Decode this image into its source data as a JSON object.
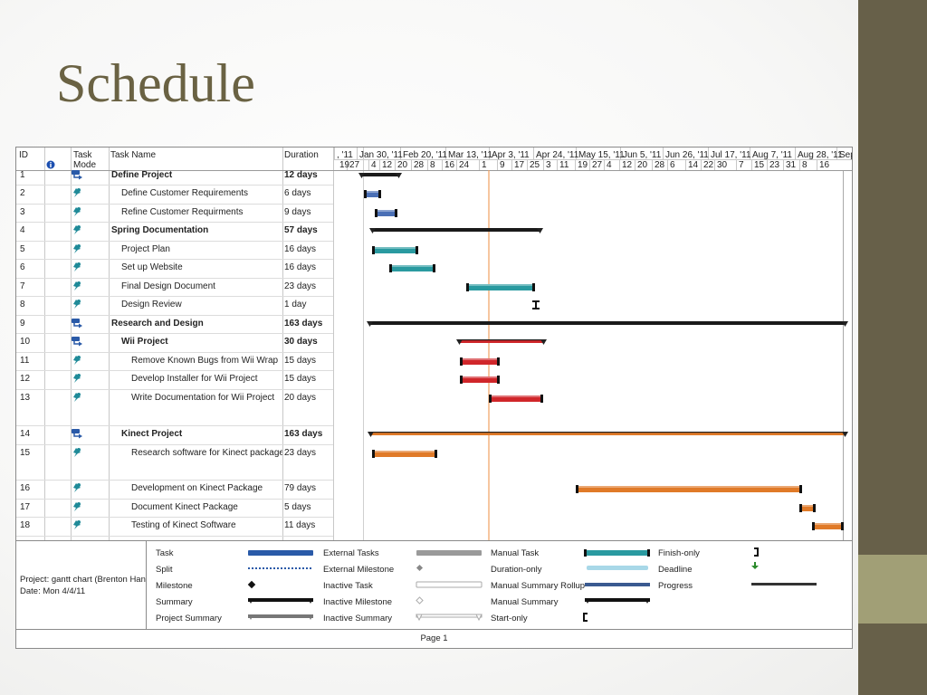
{
  "slide": {
    "title": "Schedule"
  },
  "header": {
    "id": "ID",
    "info_icon": "info-icon",
    "task_mode_1": "Task",
    "task_mode_2": "Mode",
    "task_name": "Task Name",
    "duration": "Duration"
  },
  "timeline": {
    "major": [
      ", '11",
      "Jan 30, '11",
      "Feb 20, '11",
      "Mar 13, '11",
      "Apr 3, '11",
      "Apr 24, '11",
      "May 15, '11",
      "Jun 5, '11",
      "Jun 26, '11",
      "Jul 17, '11",
      "Aug 7, '11",
      "Aug 28, '11",
      "Sep"
    ],
    "minor": [
      "19",
      "27",
      "4",
      "12",
      "20",
      "28",
      "8",
      "16",
      "24",
      "1",
      "9",
      "17",
      "25",
      "3",
      "11",
      "19",
      "27",
      "4",
      "12",
      "20",
      "28",
      "6",
      "14",
      "22",
      "30",
      "7",
      "15",
      "23",
      "31",
      "8",
      "16"
    ],
    "status_date": "Apr 3, '11"
  },
  "tasks": [
    {
      "id": "1",
      "mode": "auto",
      "name": "Define Project",
      "duration": "12 days",
      "summary": true,
      "indent": 0
    },
    {
      "id": "2",
      "mode": "manual",
      "name": "Define Customer Requirements",
      "duration": "6 days",
      "summary": false,
      "indent": 1
    },
    {
      "id": "3",
      "mode": "manual",
      "name": "Refine Customer Requirments",
      "duration": "9 days",
      "summary": false,
      "indent": 1
    },
    {
      "id": "4",
      "mode": "manual",
      "name": "Spring Documentation",
      "duration": "57 days",
      "summary": true,
      "indent": 0
    },
    {
      "id": "5",
      "mode": "manual",
      "name": "Project Plan",
      "duration": "16 days",
      "summary": false,
      "indent": 1
    },
    {
      "id": "6",
      "mode": "manual",
      "name": "Set up Website",
      "duration": "16 days",
      "summary": false,
      "indent": 1
    },
    {
      "id": "7",
      "mode": "manual",
      "name": "Final Design Document",
      "duration": "23 days",
      "summary": false,
      "indent": 1
    },
    {
      "id": "8",
      "mode": "manual",
      "name": "Design Review",
      "duration": "1 day",
      "summary": false,
      "indent": 1
    },
    {
      "id": "9",
      "mode": "auto",
      "name": "Research and Design",
      "duration": "163 days",
      "summary": true,
      "indent": 0
    },
    {
      "id": "10",
      "mode": "auto",
      "name": "Wii Project",
      "duration": "30 days",
      "summary": true,
      "indent": 1
    },
    {
      "id": "11",
      "mode": "manual",
      "name": "Remove Known Bugs from Wii Wrap",
      "duration": "15 days",
      "summary": false,
      "indent": 2
    },
    {
      "id": "12",
      "mode": "manual",
      "name": "Develop Installer for Wii Project",
      "duration": "15 days",
      "summary": false,
      "indent": 2
    },
    {
      "id": "13",
      "mode": "manual",
      "name": "Write Documentation for Wii Project",
      "duration": "20 days",
      "summary": false,
      "indent": 2
    },
    {
      "id": "14",
      "mode": "auto",
      "name": "Kinect Project",
      "duration": "163 days",
      "summary": true,
      "indent": 1
    },
    {
      "id": "15",
      "mode": "manual",
      "name": "Research software for Kinect package",
      "duration": "23 days",
      "summary": false,
      "indent": 2
    },
    {
      "id": "16",
      "mode": "manual",
      "name": "Development on Kinect Package",
      "duration": "79 days",
      "summary": false,
      "indent": 2
    },
    {
      "id": "17",
      "mode": "manual",
      "name": "Document Kinect Package",
      "duration": "5 days",
      "summary": false,
      "indent": 2
    },
    {
      "id": "18",
      "mode": "manual",
      "name": "Testing of Kinect Software",
      "duration": "11 days",
      "summary": false,
      "indent": 2
    }
  ],
  "colors": {
    "summary": "#1a1a1a",
    "blue": "#4a6fb5",
    "teal": "#2a9aa0",
    "red": "#d0262a",
    "orange": "#e07a28",
    "status_line": "#f0a060",
    "grid": "#c4c4c4"
  },
  "legend": {
    "project_label": "Project: gantt chart (Brenton Han",
    "date_label": "Date: Mon 4/4/11",
    "col1": [
      "Task",
      "Split",
      "Milestone",
      "Summary",
      "Project Summary"
    ],
    "col2": [
      "External Tasks",
      "External Milestone",
      "Inactive Task",
      "Inactive Milestone",
      "Inactive Summary"
    ],
    "col3": [
      "Manual Task",
      "Duration-only",
      "Manual Summary Rollup",
      "Manual Summary",
      "Start-only"
    ],
    "col4": [
      "Finish-only",
      "Deadline",
      "Progress"
    ],
    "page": "Page 1"
  }
}
